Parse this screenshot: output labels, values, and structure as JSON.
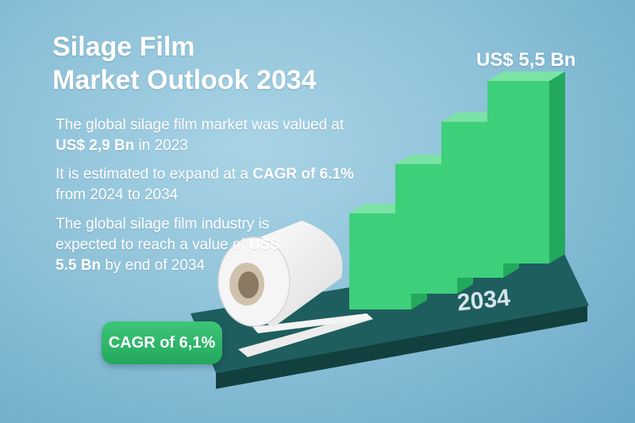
{
  "title_line1": "Silage Film",
  "title_line2": "Market Outlook 2034",
  "statements": {
    "valued_pre": "The global silage film market was valued at ",
    "valued_hl": "US$ 2,9 Bn",
    "valued_post": " in 2023",
    "cagr_pre": "It is estimated to expand at a ",
    "cagr_hl": "CAGR of 6.1%",
    "cagr_post": " from 2024 to 2034",
    "reach_pre": "The global silage film industry is expected to reach a value of ",
    "reach_hl": "US$ 5.5 Bn",
    "reach_post": " by end of 2034"
  },
  "badge": {
    "label": "CAGR of 6,1%"
  },
  "chart_data": {
    "type": "bar",
    "title": "",
    "xlabel": "",
    "ylabel": "",
    "categories": [
      "",
      "",
      "",
      ""
    ],
    "values": [
      2.9,
      3.9,
      4.7,
      5.5
    ],
    "value_label": "US$ 5,5 Bn",
    "year_label": "2034",
    "colors": {
      "bar": "#3ecf7b",
      "base": "#1e5e5e",
      "background": "#8ec2d9"
    }
  }
}
